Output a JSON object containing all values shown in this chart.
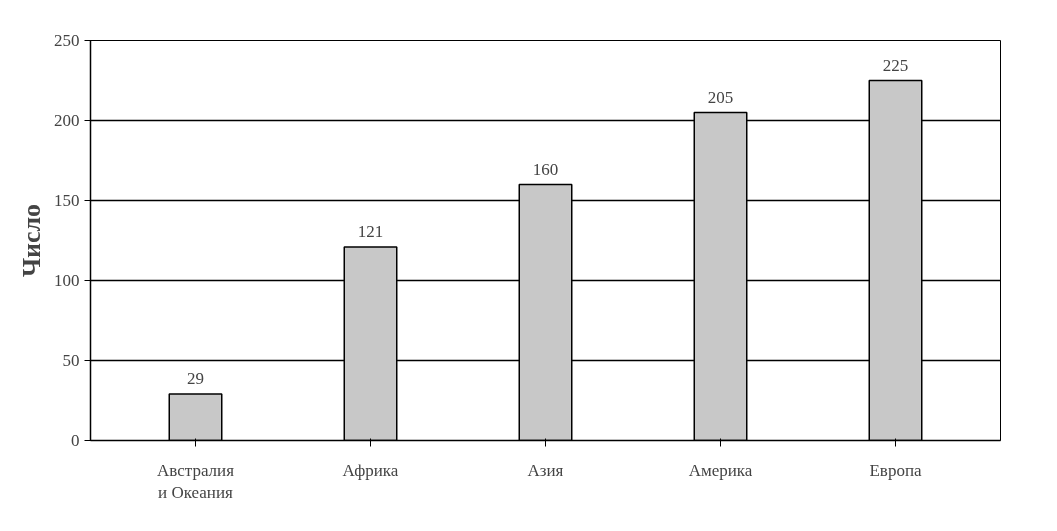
{
  "chart_data": {
    "type": "bar",
    "ylabel": "Число",
    "categories": [
      "Австралия\nи Океания",
      "Африка",
      "Азия",
      "Америка",
      "Европа"
    ],
    "values": [
      29,
      121,
      160,
      205,
      225
    ],
    "color": "#c8c8c8",
    "ylim": [
      0,
      250
    ],
    "yticks": [
      0,
      50,
      100,
      150,
      200,
      250
    ],
    "grid": "y",
    "data_labels": true
  }
}
